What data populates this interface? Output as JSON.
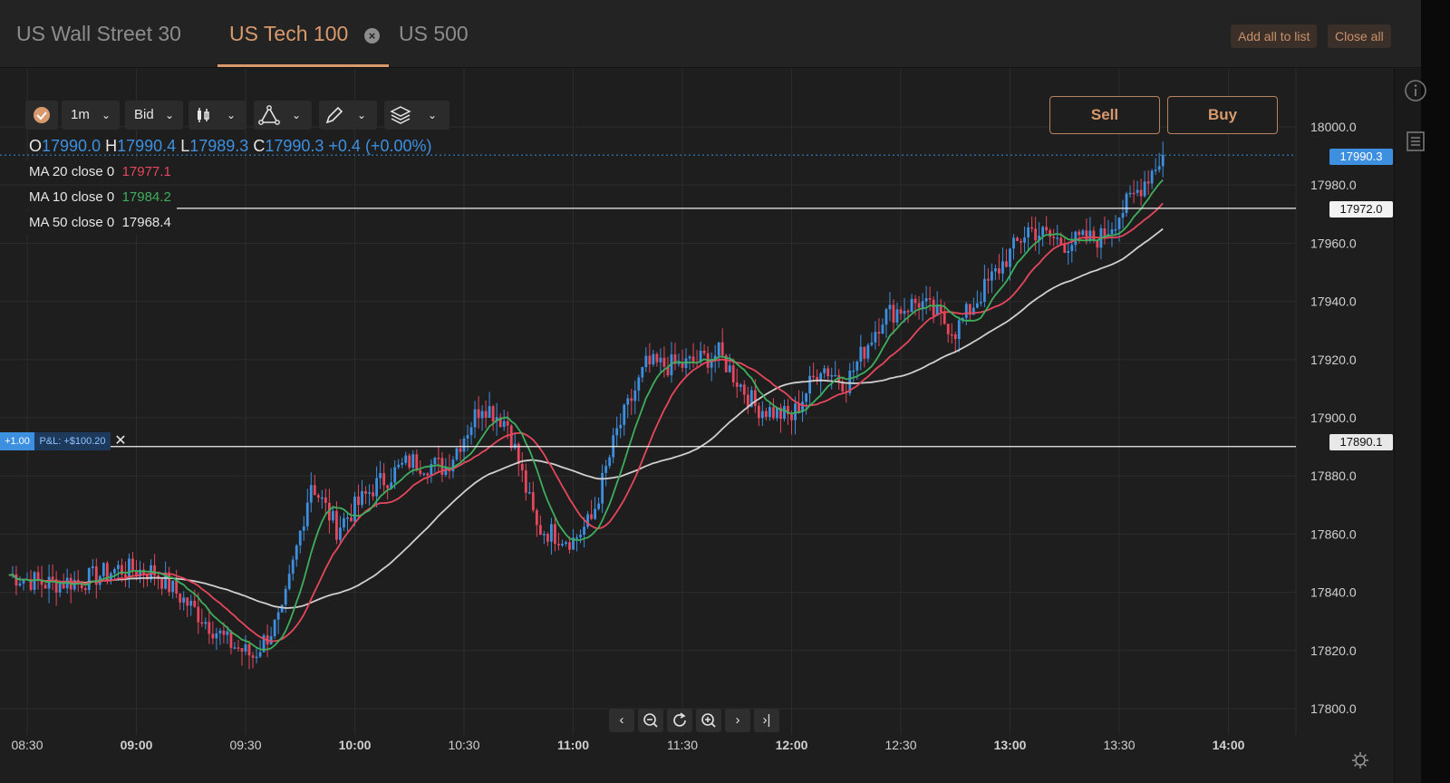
{
  "tabs": [
    {
      "label": "US Wall Street 30",
      "active": false
    },
    {
      "label": "US Tech 100",
      "active": true
    },
    {
      "label": "US 500",
      "active": false
    }
  ],
  "header_buttons": {
    "add_all": "Add all to list",
    "close_all": "Close all"
  },
  "toolbar": {
    "interval": "1m",
    "price_type": "Bid"
  },
  "ohlc": {
    "o_label": "O",
    "o": "17990.0",
    "h_label": "H",
    "h": "17990.4",
    "l_label": "L",
    "l": "17989.3",
    "c_label": "C",
    "c": "17990.3",
    "change": "+0.4 (+0.00%)"
  },
  "indicators": [
    {
      "label": "MA 20 close 0",
      "value": "17977.1",
      "color": "#e5475c"
    },
    {
      "label": "MA 10 close 0",
      "value": "17984.2",
      "color": "#3fae5c"
    },
    {
      "label": "MA 50 close 0",
      "value": "17968.4",
      "color": "#e6e6e6"
    }
  ],
  "trade": {
    "sell": "Sell",
    "buy": "Buy"
  },
  "price_tags": {
    "current": "17990.3",
    "level_high": "17972.0",
    "level_pos": "17890.1"
  },
  "position": {
    "size": "+1.00",
    "pnl": "P&L: +$100.20"
  },
  "icons": [
    "info-icon",
    "orders-icon",
    "checkmark-icon",
    "candlestick-icon",
    "drawing-icon",
    "pencil-icon",
    "layers-icon",
    "settings-icon"
  ],
  "colors": {
    "up": "#3d8fe0",
    "down": "#e5475c",
    "accent": "#d89a6c"
  },
  "chart_data": {
    "type": "candlestick",
    "y_axis_ticks": [
      "18000.0",
      "17980.0",
      "17960.0",
      "17940.0",
      "17920.0",
      "17900.0",
      "17880.0",
      "17860.0",
      "17840.0",
      "17820.0",
      "17800.0"
    ],
    "x_axis_ticks": [
      "08:30",
      "09:00",
      "09:30",
      "10:00",
      "10:30",
      "11:00",
      "11:30",
      "12:00",
      "12:30",
      "13:00",
      "13:30",
      "14:00"
    ],
    "ylim": [
      17795,
      18005
    ],
    "horizontal_lines": [
      17972.0,
      17890.1
    ],
    "close_path": [
      [
        "08:25",
        17846
      ],
      [
        "08:35",
        17843
      ],
      [
        "08:45",
        17844
      ],
      [
        "08:55",
        17848
      ],
      [
        "09:05",
        17847
      ],
      [
        "09:15",
        17835
      ],
      [
        "09:25",
        17823
      ],
      [
        "09:32",
        17818
      ],
      [
        "09:40",
        17832
      ],
      [
        "09:48",
        17878
      ],
      [
        "09:55",
        17862
      ],
      [
        "10:05",
        17876
      ],
      [
        "10:15",
        17885
      ],
      [
        "10:25",
        17883
      ],
      [
        "10:35",
        17905
      ],
      [
        "10:42",
        17898
      ],
      [
        "10:50",
        17862
      ],
      [
        "11:00",
        17858
      ],
      [
        "11:05",
        17865
      ],
      [
        "11:12",
        17895
      ],
      [
        "11:20",
        17918
      ],
      [
        "11:30",
        17918
      ],
      [
        "11:40",
        17922
      ],
      [
        "11:50",
        17904
      ],
      [
        "12:00",
        17900
      ],
      [
        "12:08",
        17918
      ],
      [
        "12:15",
        17912
      ],
      [
        "12:25",
        17935
      ],
      [
        "12:35",
        17940
      ],
      [
        "12:45",
        17930
      ],
      [
        "12:55",
        17948
      ],
      [
        "13:05",
        17965
      ],
      [
        "13:15",
        17960
      ],
      [
        "13:25",
        17962
      ],
      [
        "13:35",
        17978
      ],
      [
        "13:42",
        17990.3
      ]
    ],
    "moving_averages": [
      {
        "name": "MA 10 close 0",
        "last": 17984.2
      },
      {
        "name": "MA 20 close 0",
        "last": 17977.1
      },
      {
        "name": "MA 50 close 0",
        "last": 17968.4
      }
    ]
  }
}
